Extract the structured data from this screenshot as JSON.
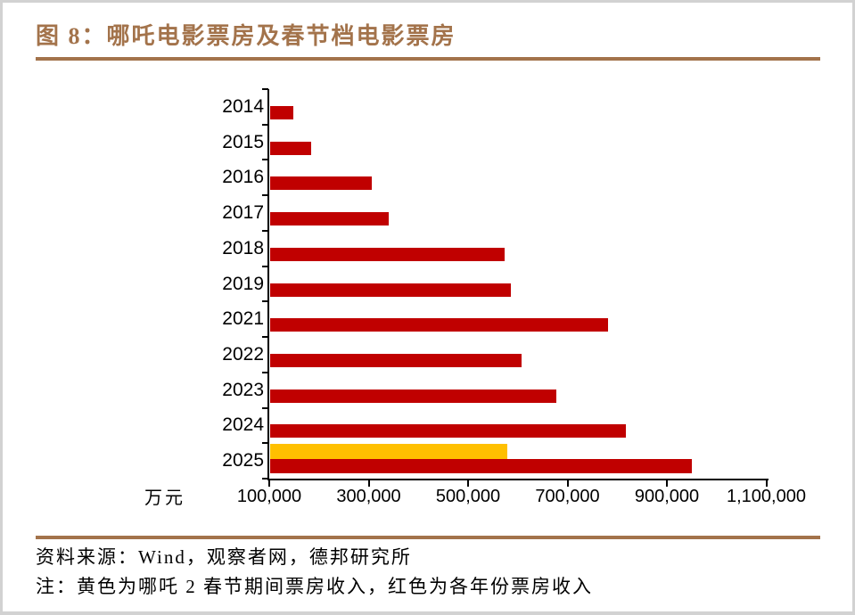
{
  "header": {
    "title": "图 8：哪吒电影票房及春节档电影票房"
  },
  "chart_data": {
    "type": "bar",
    "orientation": "horizontal",
    "title": "哪吒电影票房及春节档电影票房",
    "unit_label": "万元",
    "categories": [
      "2014",
      "2015",
      "2016",
      "2017",
      "2018",
      "2019",
      "2021",
      "2022",
      "2023",
      "2024",
      "2025"
    ],
    "series": [
      {
        "name": "各年份票房收入",
        "color": "#C00000",
        "values": [
          148000,
          184000,
          307000,
          341000,
          574000,
          586000,
          781000,
          608000,
          678000,
          818000,
          951000
        ]
      },
      {
        "name": "哪吒2春节期间票房收入",
        "color": "#FFC000",
        "values": [
          null,
          null,
          null,
          null,
          null,
          null,
          null,
          null,
          null,
          null,
          579000
        ]
      }
    ],
    "xlim": [
      100000,
      1100000
    ],
    "x_ticks": [
      100000,
      300000,
      500000,
      700000,
      900000,
      1100000
    ],
    "x_tick_labels": [
      "100,000",
      "300,000",
      "500,000",
      "700,000",
      "900,000",
      "1,100,000"
    ],
    "grid": false,
    "legend": "none"
  },
  "footer": {
    "source": "资料来源：Wind，观察者网，德邦研究所",
    "note": "注：黄色为哪吒 2 春节期间票房收入，红色为各年份票房收入"
  },
  "colors": {
    "accent_brown": "#A3734B",
    "bar_red": "#C00000",
    "bar_yellow": "#FFC000",
    "axis_black": "#000000",
    "frame_border": "#D2D2D2"
  }
}
